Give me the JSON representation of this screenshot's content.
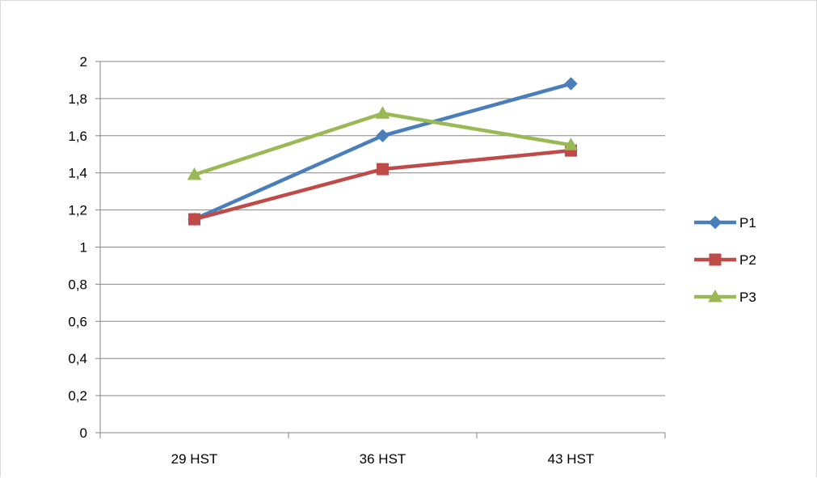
{
  "chart_data": {
    "type": "line",
    "categories": [
      "29 HST",
      "36 HST",
      "43 HST"
    ],
    "series": [
      {
        "name": "P1",
        "values": [
          1.15,
          1.6,
          1.88
        ],
        "color": "#4a7ebb",
        "marker": "diamond"
      },
      {
        "name": "P2",
        "values": [
          1.15,
          1.42,
          1.52
        ],
        "color": "#be4b48",
        "marker": "square"
      },
      {
        "name": "P3",
        "values": [
          1.39,
          1.72,
          1.55
        ],
        "color": "#98b954",
        "marker": "triangle"
      }
    ],
    "yticks": [
      "0",
      "0,2",
      "0,4",
      "0,6",
      "0,8",
      "1",
      "1,2",
      "1,4",
      "1,6",
      "1,8",
      "2"
    ],
    "ylim": [
      0,
      2
    ],
    "grid": true,
    "legend_position": "right"
  }
}
